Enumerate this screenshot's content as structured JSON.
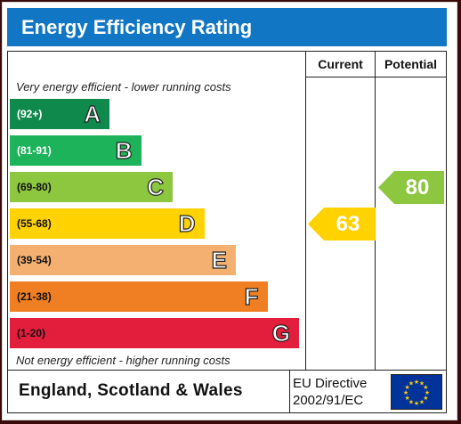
{
  "title": "Energy Efficiency Rating",
  "columns": {
    "current": "Current",
    "potential": "Potential"
  },
  "top_note": "Very energy efficient - lower running costs",
  "bottom_note": "Not energy efficient - higher running costs",
  "bands": [
    {
      "range": "(92+)",
      "letter": "A",
      "color": "#0f8a4c",
      "light_text": true
    },
    {
      "range": "(81-91)",
      "letter": "B",
      "color": "#1db35a",
      "light_text": true
    },
    {
      "range": "(69-80)",
      "letter": "C",
      "color": "#8dc63f",
      "light_text": false
    },
    {
      "range": "(55-68)",
      "letter": "D",
      "color": "#ffd200",
      "light_text": false
    },
    {
      "range": "(39-54)",
      "letter": "E",
      "color": "#f4b070",
      "light_text": false
    },
    {
      "range": "(21-38)",
      "letter": "F",
      "color": "#f07e22",
      "light_text": false
    },
    {
      "range": "(1-20)",
      "letter": "G",
      "color": "#e31d3c",
      "light_text": false
    }
  ],
  "current": {
    "value": "63",
    "band": "D",
    "color": "#ffd200"
  },
  "potential": {
    "value": "80",
    "band": "C",
    "color": "#8dc63f"
  },
  "footer": {
    "country": "England, Scotland & Wales",
    "directive_line1": "EU Directive",
    "directive_line2": "2002/91/EC",
    "flag_icon": "eu-flag-icon"
  }
}
